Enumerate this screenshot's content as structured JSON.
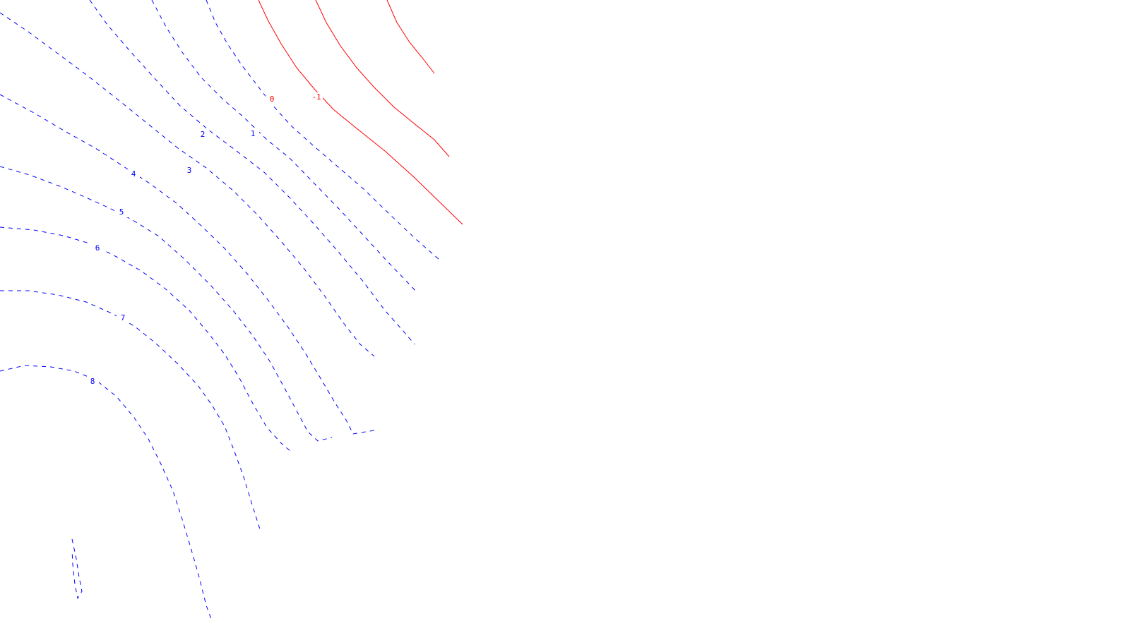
{
  "chart_data": {
    "type": "contour",
    "title": "",
    "xlabel": "",
    "ylabel": "",
    "grid": false,
    "legend": "none",
    "styles": {
      "positive": {
        "color": "#0000ff",
        "dash": "dashed"
      },
      "non_positive": {
        "color": "#ff0000",
        "dash": "solid"
      }
    },
    "levels": [
      {
        "id": "m2",
        "value": -2,
        "label": ""
      },
      {
        "id": "m1",
        "value": -1,
        "label": "-1"
      },
      {
        "id": "z0",
        "value": 0,
        "label": "0"
      },
      {
        "id": "p1",
        "value": 1,
        "label": "1"
      },
      {
        "id": "p2",
        "value": 2,
        "label": "2"
      },
      {
        "id": "p3",
        "value": 3,
        "label": "3"
      },
      {
        "id": "p4",
        "value": 4,
        "label": "4"
      },
      {
        "id": "p5",
        "value": 5,
        "label": "5"
      },
      {
        "id": "p6",
        "value": 6,
        "label": "6"
      },
      {
        "id": "p7",
        "value": 7,
        "label": "7"
      },
      {
        "id": "p8",
        "value": 8,
        "label": "8"
      },
      {
        "id": "p9",
        "value": 9,
        "label": ""
      }
    ]
  }
}
